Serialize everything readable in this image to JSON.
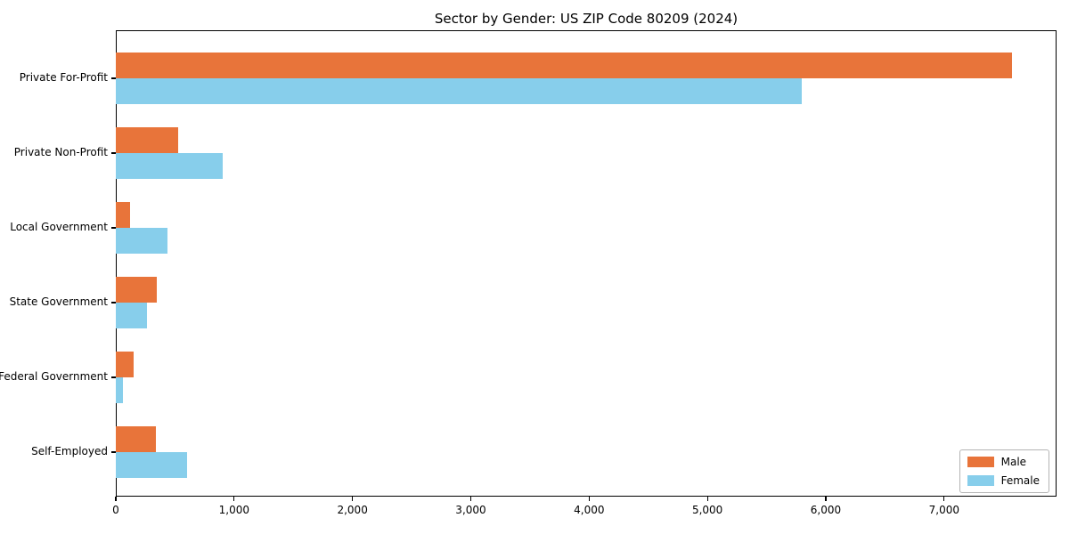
{
  "title": "Sector by Gender: US ZIP Code 80209 (2024)",
  "chart_data": {
    "type": "bar",
    "orientation": "horizontal",
    "title": "Sector by Gender: US ZIP Code 80209 (2024)",
    "categories": [
      "Private For-Profit",
      "Private Non-Profit",
      "Local Government",
      "State Government",
      "Federal Government",
      "Self-Employed"
    ],
    "series": [
      {
        "name": "Male",
        "color": "#e8743a",
        "values": [
          7570,
          530,
          120,
          350,
          150,
          340
        ]
      },
      {
        "name": "Female",
        "color": "#87ceeb",
        "values": [
          5800,
          900,
          440,
          260,
          60,
          600
        ]
      }
    ],
    "xlabel": "",
    "ylabel": "",
    "xlim": [
      0,
      7950
    ],
    "xticks": [
      0,
      1000,
      2000,
      3000,
      4000,
      5000,
      6000,
      7000
    ],
    "xtick_labels": [
      "0",
      "1,000",
      "2,000",
      "3,000",
      "4,000",
      "5,000",
      "6,000",
      "7,000"
    ],
    "grid": false,
    "legend_position": "lower right",
    "axis_color": "#000000",
    "background_color": "#ffffff"
  }
}
